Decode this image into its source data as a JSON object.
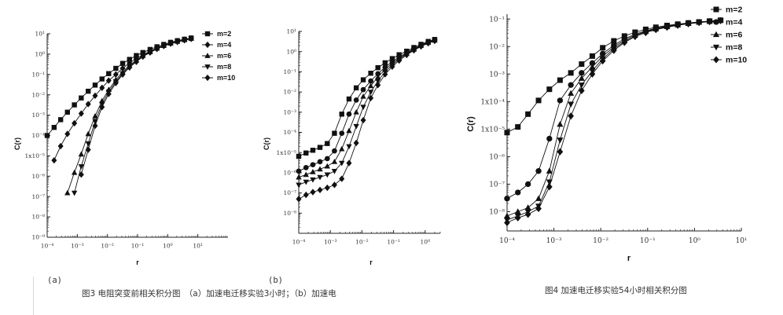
{
  "chart_data": [
    {
      "type": "line",
      "panel_label": "(a)",
      "scale": "log-log",
      "xlabel": "r",
      "ylabel": "C(r)",
      "xlim": [
        0.0001,
        100
      ],
      "ylim": [
        1e-09,
        10
      ],
      "x_ticks": [
        "10⁻⁴",
        "10⁻³",
        "10⁻²",
        "10⁻¹",
        "10⁰",
        "10¹"
      ],
      "y_ticks": [
        "10¹",
        "10⁰",
        "10⁻¹",
        "10⁻²",
        "10⁻³",
        "10⁻⁴",
        "1x10⁻⁵",
        "10⁻⁶",
        "10⁻⁷",
        "10⁻⁸",
        "10⁻⁹"
      ],
      "legend_position": "top-right",
      "series": [
        {
          "name": "m=2",
          "marker": "square",
          "x": [
            0.0001,
            0.00017,
            0.00028,
            0.00047,
            0.0008,
            0.00135,
            0.0023,
            0.0039,
            0.0066,
            0.011,
            0.019,
            0.032,
            0.054,
            0.091,
            0.15,
            0.26,
            0.44,
            0.74,
            1.25,
            2.1,
            3.6,
            6
          ],
          "y": [
            0.0001,
            0.00025,
            0.0006,
            0.0014,
            0.0032,
            0.007,
            0.015,
            0.03,
            0.06,
            0.11,
            0.2,
            0.35,
            0.55,
            0.85,
            1.2,
            1.7,
            2.3,
            3,
            3.8,
            4.6,
            5.4,
            6.2
          ]
        },
        {
          "name": "m=4",
          "marker": "diamond",
          "x": [
            0.00017,
            0.00028,
            0.00047,
            0.0008,
            0.00135,
            0.0023,
            0.0039,
            0.0066,
            0.011,
            0.019,
            0.032,
            0.054,
            0.091,
            0.15,
            0.26,
            0.44,
            0.74,
            1.25,
            2.1,
            3.6,
            6
          ],
          "y": [
            6e-06,
            3e-05,
            0.00012,
            0.0004,
            0.0012,
            0.0035,
            0.009,
            0.022,
            0.05,
            0.1,
            0.2,
            0.37,
            0.6,
            0.95,
            1.4,
            2,
            2.7,
            3.5,
            4.3,
            5.1,
            5.9
          ]
        },
        {
          "name": "m=6",
          "marker": "triangle-up",
          "x": [
            0.00047,
            0.0008,
            0.00135,
            0.0023,
            0.0039,
            0.0066,
            0.011,
            0.019,
            0.032,
            0.054,
            0.091,
            0.15,
            0.26,
            0.44,
            0.74,
            1.25,
            2.1,
            3.6,
            6
          ],
          "y": [
            1.5e-07,
            1.5e-06,
            1.2e-05,
            0.00012,
            0.0009,
            0.005,
            0.018,
            0.055,
            0.13,
            0.28,
            0.5,
            0.85,
            1.3,
            1.9,
            2.6,
            3.4,
            4.2,
            5,
            5.8
          ]
        },
        {
          "name": "m=8",
          "marker": "triangle-down",
          "x": [
            0.0008,
            0.00135,
            0.0023,
            0.0039,
            0.0066,
            0.011,
            0.019,
            0.032,
            0.054,
            0.091,
            0.15,
            0.26,
            0.44,
            0.74,
            1.25,
            2.1,
            3.6,
            6
          ],
          "y": [
            1.5e-07,
            3e-06,
            4e-05,
            0.0005,
            0.0035,
            0.014,
            0.045,
            0.11,
            0.25,
            0.45,
            0.8,
            1.25,
            1.85,
            2.55,
            3.3,
            4.1,
            4.9,
            5.7
          ]
        },
        {
          "name": "m=10",
          "marker": "diamond",
          "x": [
            0.00135,
            0.0023,
            0.0039,
            0.0066,
            0.011,
            0.019,
            0.032,
            0.054,
            0.091,
            0.15,
            0.26,
            0.44,
            0.74,
            1.25,
            2.1,
            3.6,
            6
          ],
          "y": [
            1.2e-06,
            2e-05,
            0.0003,
            0.0025,
            0.011,
            0.038,
            0.1,
            0.22,
            0.42,
            0.75,
            1.2,
            1.8,
            2.5,
            3.25,
            4,
            4.8,
            5.6
          ]
        }
      ]
    },
    {
      "type": "line",
      "panel_label": "(b)",
      "scale": "log-log",
      "xlabel": "r",
      "ylabel": "C(r)",
      "xlim": [
        0.0001,
        3
      ],
      "ylim": [
        1e-09,
        10
      ],
      "x_ticks": [
        "10⁻⁴",
        "10⁻³",
        "10⁻²",
        "10⁻¹",
        "10⁰"
      ],
      "y_ticks": [
        "10¹",
        "10⁰",
        "10⁻¹",
        "10⁻²",
        "10⁻³",
        "10⁻⁴",
        "1x10⁻⁵",
        "10⁻⁶",
        "10⁻⁷",
        "10⁻⁸"
      ],
      "series": [
        {
          "name": "m=2",
          "marker": "square",
          "x": [
            0.0001,
            0.00017,
            0.00028,
            0.00047,
            0.0008,
            0.00135,
            0.0023,
            0.0039,
            0.0066,
            0.011,
            0.019,
            0.032,
            0.054,
            0.091,
            0.15,
            0.26,
            0.44,
            0.74,
            1.25,
            2
          ],
          "y": [
            6.5e-06,
            9.5e-06,
            1.3e-05,
            1.8e-05,
            2.8e-05,
            9e-05,
            0.0008,
            0.0045,
            0.016,
            0.04,
            0.085,
            0.16,
            0.28,
            0.45,
            0.7,
            1.05,
            1.6,
            2.3,
            3.2,
            4
          ]
        },
        {
          "name": "m=4",
          "marker": "circle",
          "x": [
            0.0001,
            0.00017,
            0.00028,
            0.00047,
            0.0008,
            0.00135,
            0.0023,
            0.0039,
            0.0066,
            0.011,
            0.019,
            0.032,
            0.054,
            0.091,
            0.15,
            0.26,
            0.44,
            0.74,
            1.25,
            2
          ],
          "y": [
            1.2e-06,
            1.8e-06,
            2.5e-06,
            3.5e-06,
            5e-06,
            1.2e-05,
            9e-05,
            0.0008,
            0.004,
            0.013,
            0.035,
            0.08,
            0.17,
            0.32,
            0.55,
            0.9,
            1.4,
            2.1,
            3,
            3.8
          ]
        },
        {
          "name": "m=6",
          "marker": "triangle-up",
          "x": [
            0.0001,
            0.00017,
            0.00028,
            0.00047,
            0.0008,
            0.00135,
            0.0023,
            0.0039,
            0.0066,
            0.011,
            0.019,
            0.032,
            0.054,
            0.091,
            0.15,
            0.26,
            0.44,
            0.74,
            1.25,
            2
          ],
          "y": [
            6e-07,
            8e-07,
            1.1e-06,
            1.5e-06,
            2.1e-06,
            3.5e-06,
            1.5e-05,
            0.00012,
            0.001,
            0.006,
            0.02,
            0.055,
            0.13,
            0.27,
            0.48,
            0.82,
            1.3,
            2,
            2.8,
            3.6
          ]
        },
        {
          "name": "m=8",
          "marker": "triangle-down",
          "x": [
            0.0001,
            0.00017,
            0.00028,
            0.00047,
            0.0008,
            0.00135,
            0.0023,
            0.0039,
            0.0066,
            0.011,
            0.019,
            0.032,
            0.054,
            0.091,
            0.15,
            0.26,
            0.44,
            0.74,
            1.25,
            2
          ],
          "y": [
            2.5e-07,
            3.5e-07,
            4.5e-07,
            6e-07,
            8e-07,
            1.2e-06,
            3e-06,
            2e-05,
            0.0002,
            0.0018,
            0.01,
            0.035,
            0.1,
            0.22,
            0.42,
            0.75,
            1.2,
            1.9,
            2.7,
            3.5
          ]
        },
        {
          "name": "m=10",
          "marker": "diamond",
          "x": [
            0.0001,
            0.00017,
            0.00028,
            0.00047,
            0.0008,
            0.00135,
            0.0023,
            0.0039,
            0.0066,
            0.011,
            0.019,
            0.032,
            0.054,
            0.091,
            0.15,
            0.26,
            0.44,
            0.74,
            1.25,
            2
          ],
          "y": [
            5e-08,
            8e-08,
            1.1e-07,
            1.4e-07,
            1.8e-07,
            2.5e-07,
            5e-07,
            3e-06,
            3e-05,
            0.0004,
            0.005,
            0.022,
            0.075,
            0.18,
            0.36,
            0.68,
            1.15,
            1.8,
            2.6,
            3.4
          ]
        }
      ]
    },
    {
      "type": "line",
      "panel_label": "",
      "scale": "log-log",
      "xlabel": "r",
      "ylabel": "C(r)",
      "xlim": [
        0.0001,
        10
      ],
      "ylim": [
        2e-09,
        0.15
      ],
      "x_ticks": [
        "10⁻⁴",
        "10⁻³",
        "10⁻²",
        "10⁻¹",
        "10⁰",
        "10¹"
      ],
      "y_ticks": [
        "10⁻¹",
        "10⁻²",
        "10⁻³",
        "1x10⁻⁴",
        "1x10⁻⁵",
        "10⁻⁶",
        "10⁻⁷",
        "10⁻⁸"
      ],
      "legend_position": "top-right",
      "series": [
        {
          "name": "m=2",
          "marker": "square",
          "x": [
            0.0001,
            0.00017,
            0.00028,
            0.00047,
            0.0008,
            0.00135,
            0.0023,
            0.0039,
            0.0066,
            0.011,
            0.019,
            0.032,
            0.054,
            0.091,
            0.15,
            0.26,
            0.44,
            0.74,
            1.25,
            2.1,
            3.6
          ],
          "y": [
            7.5e-06,
            1.2e-05,
            3.5e-05,
            0.00011,
            0.00028,
            0.0006,
            0.0011,
            0.0023,
            0.0045,
            0.009,
            0.016,
            0.024,
            0.033,
            0.042,
            0.05,
            0.058,
            0.065,
            0.072,
            0.078,
            0.084,
            0.09
          ]
        },
        {
          "name": "m=4",
          "marker": "circle",
          "x": [
            0.0001,
            0.00017,
            0.00028,
            0.00047,
            0.0008,
            0.00135,
            0.0023,
            0.0039,
            0.0066,
            0.011,
            0.019,
            0.032,
            0.054,
            0.091,
            0.15,
            0.26,
            0.44,
            0.74,
            1.25,
            2.1,
            3.6
          ],
          "y": [
            3e-08,
            5e-08,
            1e-07,
            3e-07,
            4.5e-06,
            0.00011,
            0.0004,
            0.0011,
            0.0025,
            0.0055,
            0.011,
            0.019,
            0.028,
            0.037,
            0.046,
            0.055,
            0.063,
            0.07,
            0.077,
            0.083,
            0.09
          ]
        },
        {
          "name": "m=6",
          "marker": "triangle-up",
          "x": [
            0.0001,
            0.00017,
            0.00028,
            0.00047,
            0.0008,
            0.00135,
            0.0023,
            0.0039,
            0.0066,
            0.011,
            0.019,
            0.032,
            0.054,
            0.091,
            0.15,
            0.26,
            0.44,
            0.74,
            1.25,
            2.1,
            3.6
          ],
          "y": [
            7e-09,
            1e-08,
            1.4e-08,
            3e-08,
            3e-07,
            1.5e-05,
            0.0002,
            0.0007,
            0.0018,
            0.0045,
            0.0095,
            0.017,
            0.026,
            0.035,
            0.044,
            0.053,
            0.061,
            0.069,
            0.076,
            0.082,
            0.089
          ]
        },
        {
          "name": "m=8",
          "marker": "triangle-down",
          "x": [
            0.0001,
            0.00017,
            0.00028,
            0.00047,
            0.0008,
            0.00135,
            0.0023,
            0.0039,
            0.0066,
            0.011,
            0.019,
            0.032,
            0.054,
            0.091,
            0.15,
            0.26,
            0.44,
            0.74,
            1.25,
            2.1,
            3.6
          ],
          "y": [
            5e-09,
            7e-09,
            1e-08,
            1.6e-08,
            1.2e-07,
            4e-06,
            8e-05,
            0.0004,
            0.0013,
            0.0036,
            0.0082,
            0.015,
            0.024,
            0.033,
            0.042,
            0.051,
            0.06,
            0.068,
            0.075,
            0.081,
            0.088
          ]
        },
        {
          "name": "m=10",
          "marker": "diamond",
          "x": [
            0.0001,
            0.00017,
            0.00028,
            0.00047,
            0.0008,
            0.00135,
            0.0023,
            0.0039,
            0.0066,
            0.011,
            0.019,
            0.032,
            0.054,
            0.091,
            0.15,
            0.26,
            0.44,
            0.74,
            1.25,
            2.1,
            3.6
          ],
          "y": [
            4e-09,
            6e-09,
            8e-09,
            1.3e-08,
            8e-08,
            1.5e-06,
            3e-05,
            0.00025,
            0.001,
            0.003,
            0.0072,
            0.014,
            0.023,
            0.032,
            0.041,
            0.05,
            0.059,
            0.067,
            0.074,
            0.08,
            0.087
          ]
        }
      ]
    }
  ],
  "captions": {
    "panel_a": "(a)",
    "panel_b": "(b)",
    "fig3": "图3 电阻突变前相关积分图　（a）加速电迁移实验3小时；（b）加速电",
    "fig4": "图4 加速电迁移实验54小时相关积分图"
  }
}
